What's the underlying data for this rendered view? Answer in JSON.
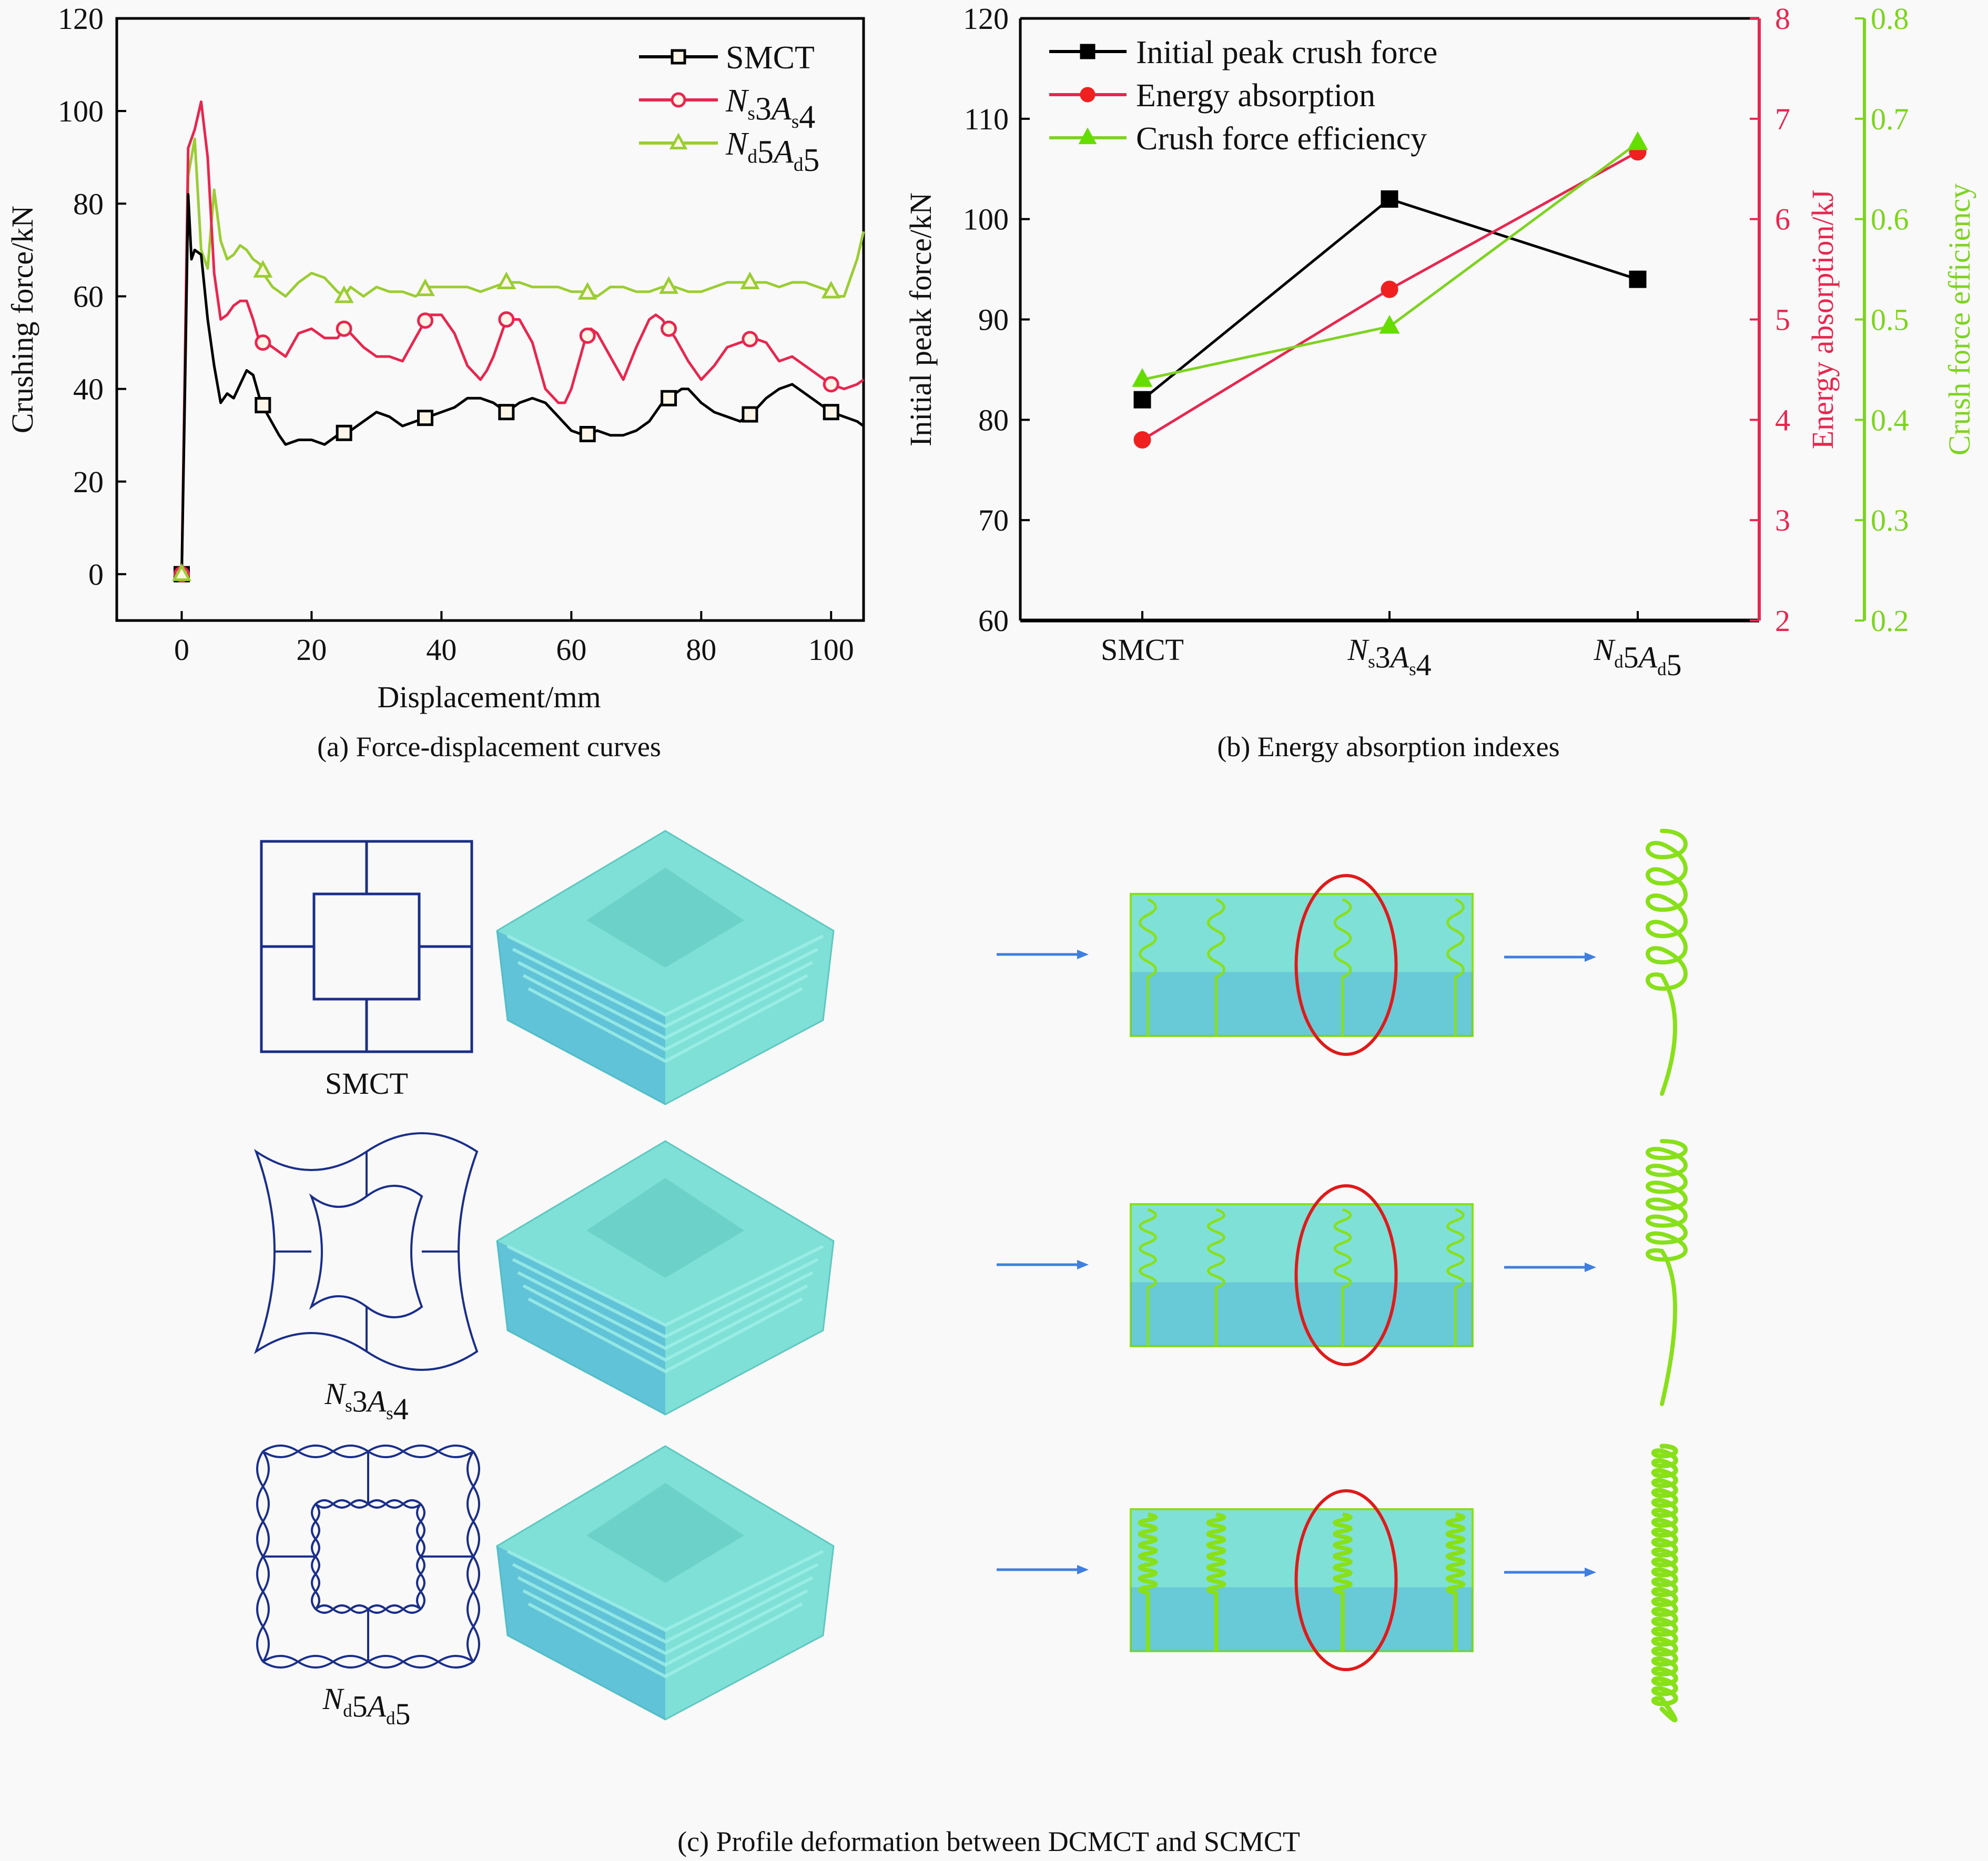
{
  "chart_data": [
    {
      "id": "a",
      "type": "line",
      "caption": "(a) Force-displacement curves",
      "xlabel": "Displacement/mm",
      "ylabel": "Crushing force/kN",
      "xlim": [
        -10,
        105
      ],
      "ylim": [
        -10,
        120
      ],
      "xticks": [
        0,
        20,
        40,
        60,
        80,
        100
      ],
      "yticks": [
        0,
        20,
        40,
        60,
        80,
        100,
        120
      ],
      "legend_position": "top-right",
      "series": [
        {
          "name": "SMCT",
          "legend_parts": [
            {
              "t": "SMCT",
              "s": ""
            }
          ],
          "color": "#000000",
          "marker": "square-open",
          "x": [
            0,
            0.5,
            1,
            1.5,
            2,
            3,
            4,
            5,
            6,
            7,
            8,
            9,
            10,
            11,
            12,
            13,
            15,
            16,
            18,
            20,
            22,
            24,
            26,
            28,
            30,
            32,
            34,
            36,
            38,
            40,
            42,
            44,
            46,
            48,
            50,
            52,
            54,
            56,
            58,
            60,
            62,
            64,
            66,
            68,
            70,
            72,
            74,
            76,
            77,
            78,
            80,
            82,
            84,
            86,
            88,
            90,
            92,
            94,
            96,
            98,
            100,
            102,
            104,
            105
          ],
          "y": [
            0,
            40,
            82,
            68,
            70,
            69,
            55,
            45,
            37,
            39,
            38,
            41,
            44,
            43,
            38,
            35,
            30,
            28,
            29,
            29,
            28,
            30,
            31,
            33,
            35,
            34,
            32,
            33,
            34,
            35,
            36,
            38,
            38,
            37,
            35,
            37,
            38,
            37,
            34,
            31,
            30,
            31,
            30,
            30,
            31,
            33,
            37,
            39,
            40,
            40,
            37,
            35,
            34,
            33,
            35,
            38,
            40,
            41,
            39,
            37,
            35,
            34,
            33,
            32
          ],
          "marker_x": [
            0,
            12.5,
            25,
            37.5,
            50,
            62.5,
            75,
            87.5,
            100
          ]
        },
        {
          "name": "Ns3As4",
          "legend_parts": [
            {
              "t": "N",
              "s": "s",
              "i": true
            },
            {
              "t": "3"
            },
            {
              "t": "A",
              "s": "s",
              "i": true
            },
            {
              "t": "4"
            }
          ],
          "color": "#e8264f",
          "marker": "circle-open",
          "x": [
            0,
            1,
            2,
            3,
            4,
            5,
            6,
            7,
            8,
            9,
            10,
            11,
            12,
            13,
            15,
            16,
            18,
            20,
            22,
            24,
            25,
            26,
            28,
            30,
            32,
            34,
            36,
            38,
            40,
            42,
            44,
            46,
            47,
            48,
            50,
            52,
            54,
            56,
            58,
            59,
            60,
            62,
            63,
            64,
            66,
            68,
            70,
            72,
            73,
            74,
            76,
            78,
            80,
            82,
            84,
            86,
            88,
            90,
            92,
            94,
            96,
            98,
            100,
            102,
            104,
            105
          ],
          "y": [
            0,
            92,
            96,
            102,
            90,
            65,
            55,
            56,
            58,
            59,
            59,
            55,
            50,
            50,
            48,
            47,
            52,
            53,
            51,
            51,
            53,
            52,
            49,
            47,
            47,
            46,
            51,
            56,
            56,
            52,
            45,
            42,
            44,
            47,
            55,
            55,
            50,
            40,
            37,
            37,
            40,
            50,
            53,
            52,
            47,
            42,
            49,
            55,
            56,
            55,
            51,
            46,
            42,
            45,
            49,
            50,
            51,
            50,
            46,
            47,
            45,
            43,
            41,
            40,
            41,
            42
          ],
          "marker_x": [
            0,
            12.5,
            25,
            37.5,
            50,
            62.5,
            75,
            87.5,
            100
          ]
        },
        {
          "name": "Nd5Ad5",
          "legend_parts": [
            {
              "t": "N",
              "s": "d",
              "i": true
            },
            {
              "t": "5"
            },
            {
              "t": "A",
              "s": "d",
              "i": true
            },
            {
              "t": "5"
            }
          ],
          "color": "#9acd32",
          "marker": "triangle-open",
          "x": [
            0,
            1,
            2,
            3,
            4,
            5,
            6,
            7,
            8,
            9,
            10,
            11,
            12,
            13,
            14,
            16,
            18,
            20,
            22,
            24,
            25,
            26,
            28,
            30,
            32,
            34,
            36,
            38,
            40,
            42,
            44,
            46,
            48,
            50,
            52,
            54,
            56,
            58,
            60,
            62,
            64,
            66,
            68,
            70,
            72,
            74,
            76,
            78,
            80,
            82,
            84,
            86,
            88,
            90,
            92,
            94,
            96,
            98,
            100,
            101,
            102,
            103,
            104,
            105
          ],
          "y": [
            0,
            86,
            94,
            70,
            66,
            83,
            72,
            68,
            69,
            71,
            70,
            68,
            67,
            64,
            62,
            60,
            63,
            65,
            64,
            61,
            60,
            62,
            60,
            62,
            61,
            61,
            60,
            62,
            62,
            62,
            62,
            61,
            62,
            63,
            63,
            62,
            62,
            62,
            61,
            61,
            60,
            62,
            62,
            61,
            61,
            62,
            62,
            61,
            61,
            62,
            63,
            63,
            63,
            63,
            62,
            63,
            63,
            62,
            61,
            60,
            60,
            64,
            68,
            74
          ],
          "marker_x": [
            0,
            12.5,
            25,
            37.5,
            50,
            62.5,
            75,
            87.5,
            100
          ]
        }
      ]
    },
    {
      "id": "b",
      "type": "line",
      "caption": "(b) Energy absorption indexes",
      "categories": [
        "SMCT",
        "Ns3As4",
        "Nd5Ad5"
      ],
      "category_parts": [
        [
          {
            "t": "SMCT"
          }
        ],
        [
          {
            "t": "N",
            "s": "s",
            "i": true
          },
          {
            "t": "3"
          },
          {
            "t": "A",
            "s": "s",
            "i": true
          },
          {
            "t": "4"
          }
        ],
        [
          {
            "t": "N",
            "s": "d",
            "i": true
          },
          {
            "t": "5"
          },
          {
            "t": "A",
            "s": "d",
            "i": true
          },
          {
            "t": "5"
          }
        ]
      ],
      "legend_position": "top-left",
      "axes": [
        {
          "side": "left",
          "label": "Initial peak force/kN",
          "ylim": [
            60,
            120
          ],
          "ticks": [
            60,
            70,
            80,
            90,
            100,
            110,
            120
          ],
          "color": "#000000"
        },
        {
          "side": "right",
          "label": "Energy absorption/kJ",
          "ylim": [
            2,
            8
          ],
          "ticks": [
            2,
            3,
            4,
            5,
            6,
            7,
            8
          ],
          "color": "#e8264f"
        },
        {
          "side": "right-outer",
          "label": "Crush force efficiency",
          "ylim": [
            0.2,
            0.8
          ],
          "ticks": [
            "0.2",
            "0.3",
            "0.4",
            "0.5",
            "0.6",
            "0.7",
            "0.8"
          ],
          "color": "#7ed321"
        }
      ],
      "series": [
        {
          "name": "Initial peak crush force",
          "axis": 0,
          "color": "#000000",
          "marker_color": "#000000",
          "marker": "square-filled",
          "values": [
            82,
            102,
            94
          ]
        },
        {
          "name": "Energy absorption",
          "axis": 1,
          "color": "#e8264f",
          "marker_color": "#f02020",
          "marker": "circle-filled",
          "values": [
            3.8,
            5.3,
            6.67
          ]
        },
        {
          "name": "Crush force efficiency",
          "axis": 2,
          "color": "#7ed321",
          "marker_color": "#66dd00",
          "marker": "triangle-filled",
          "values": [
            0.44,
            0.493,
            0.676
          ]
        }
      ]
    }
  ],
  "figure_c": {
    "caption": "(c) Profile deformation between DCMCT and SCMCT",
    "rows": [
      {
        "label_parts": [
          {
            "t": "SMCT"
          }
        ],
        "name": "SMCT"
      },
      {
        "label_parts": [
          {
            "t": "N",
            "s": "s",
            "i": true
          },
          {
            "t": "3"
          },
          {
            "t": "A",
            "s": "s",
            "i": true
          },
          {
            "t": "4"
          }
        ],
        "name": "Ns3As4"
      },
      {
        "label_parts": [
          {
            "t": "N",
            "s": "d",
            "i": true
          },
          {
            "t": "5"
          },
          {
            "t": "A",
            "s": "d",
            "i": true
          },
          {
            "t": "5"
          }
        ],
        "name": "Nd5Ad5"
      }
    ],
    "colors": {
      "section_line": "#1a2e8a",
      "mesh": "#7fe0d8",
      "mesh_shadow": "#3f9fd8",
      "fold": "#88e01a",
      "highlight": "#e01a1a",
      "arrow": "#3f7fe0"
    }
  }
}
